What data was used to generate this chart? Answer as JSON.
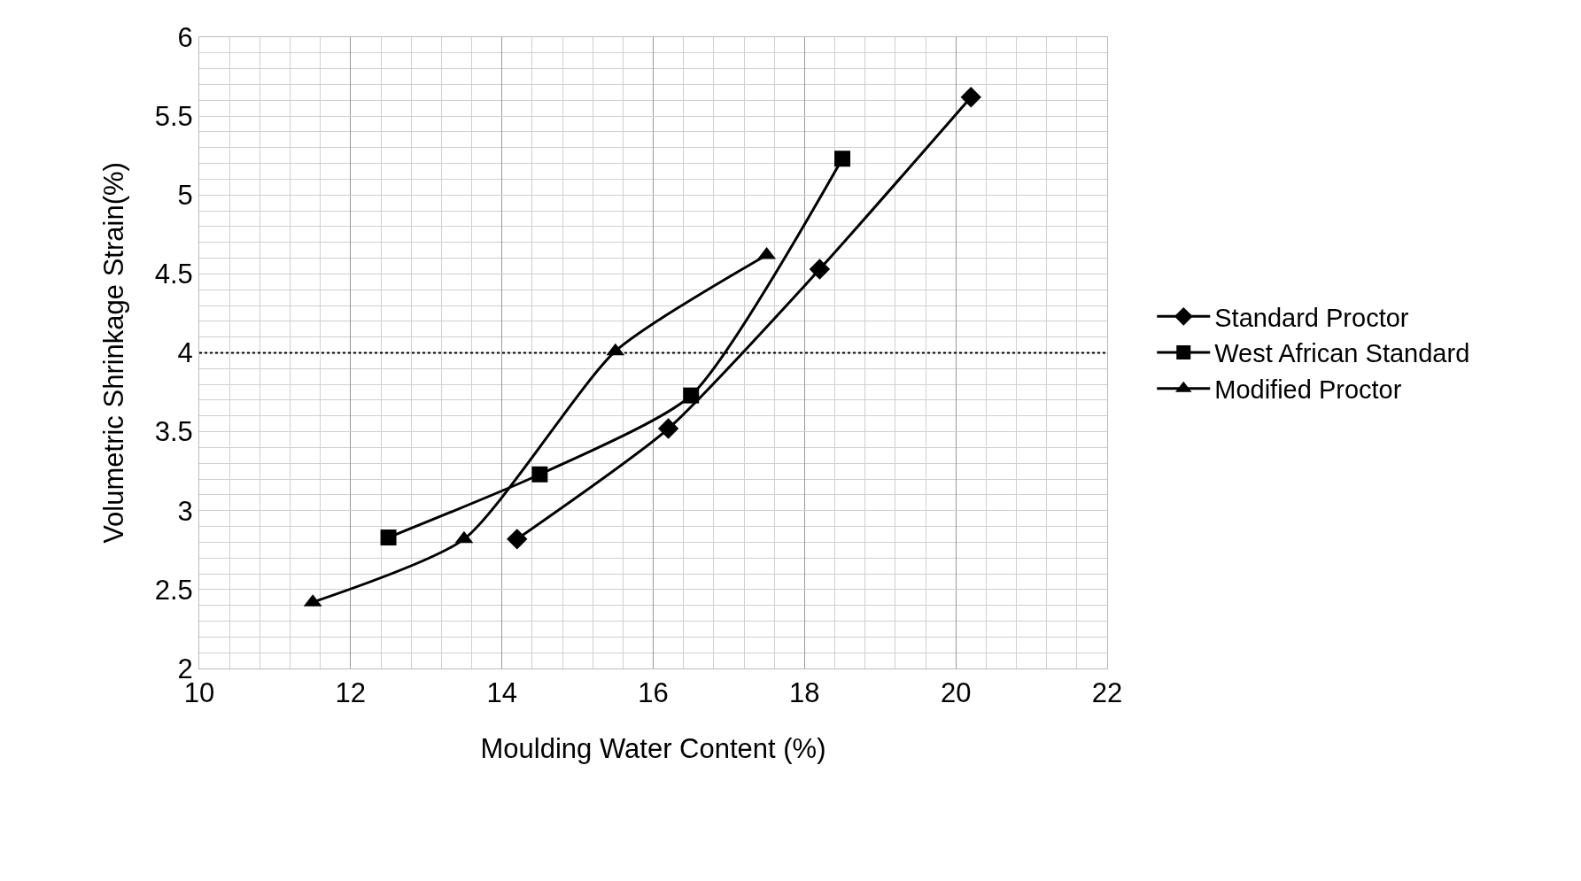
{
  "chart_data": {
    "type": "line",
    "xlabel": "Moulding Water Content (%)",
    "ylabel": "Volumetric Shrinkage Strain(%)",
    "xlim": [
      10,
      22
    ],
    "xticks": [
      10,
      12,
      14,
      16,
      18,
      20,
      22
    ],
    "ylim": [
      2,
      6
    ],
    "yticks": [
      2,
      2.5,
      3,
      3.5,
      4,
      4.5,
      5,
      5.5,
      6
    ],
    "grid": true,
    "legend": "right",
    "line_style": "solid",
    "series": [
      {
        "name": "Standard Proctor",
        "color": "#000000",
        "marker": "diamond",
        "x": [
          14.2,
          16.2,
          18.2,
          20.2
        ],
        "values": [
          2.82,
          3.52,
          4.53,
          5.62
        ]
      },
      {
        "name": "West African Standard",
        "color": "#000000",
        "marker": "square",
        "x": [
          12.5,
          14.5,
          16.5,
          18.5
        ],
        "values": [
          2.83,
          3.23,
          3.73,
          5.23
        ]
      },
      {
        "name": "Modified Proctor",
        "color": "#000000",
        "marker": "triangle",
        "x": [
          11.5,
          13.5,
          15.5,
          17.5
        ],
        "values": [
          2.42,
          2.82,
          4.01,
          4.62
        ]
      }
    ],
    "ref_lines": [
      {
        "axis": "y",
        "value": 4,
        "color": "#000000",
        "line_style": "dotted"
      }
    ]
  }
}
